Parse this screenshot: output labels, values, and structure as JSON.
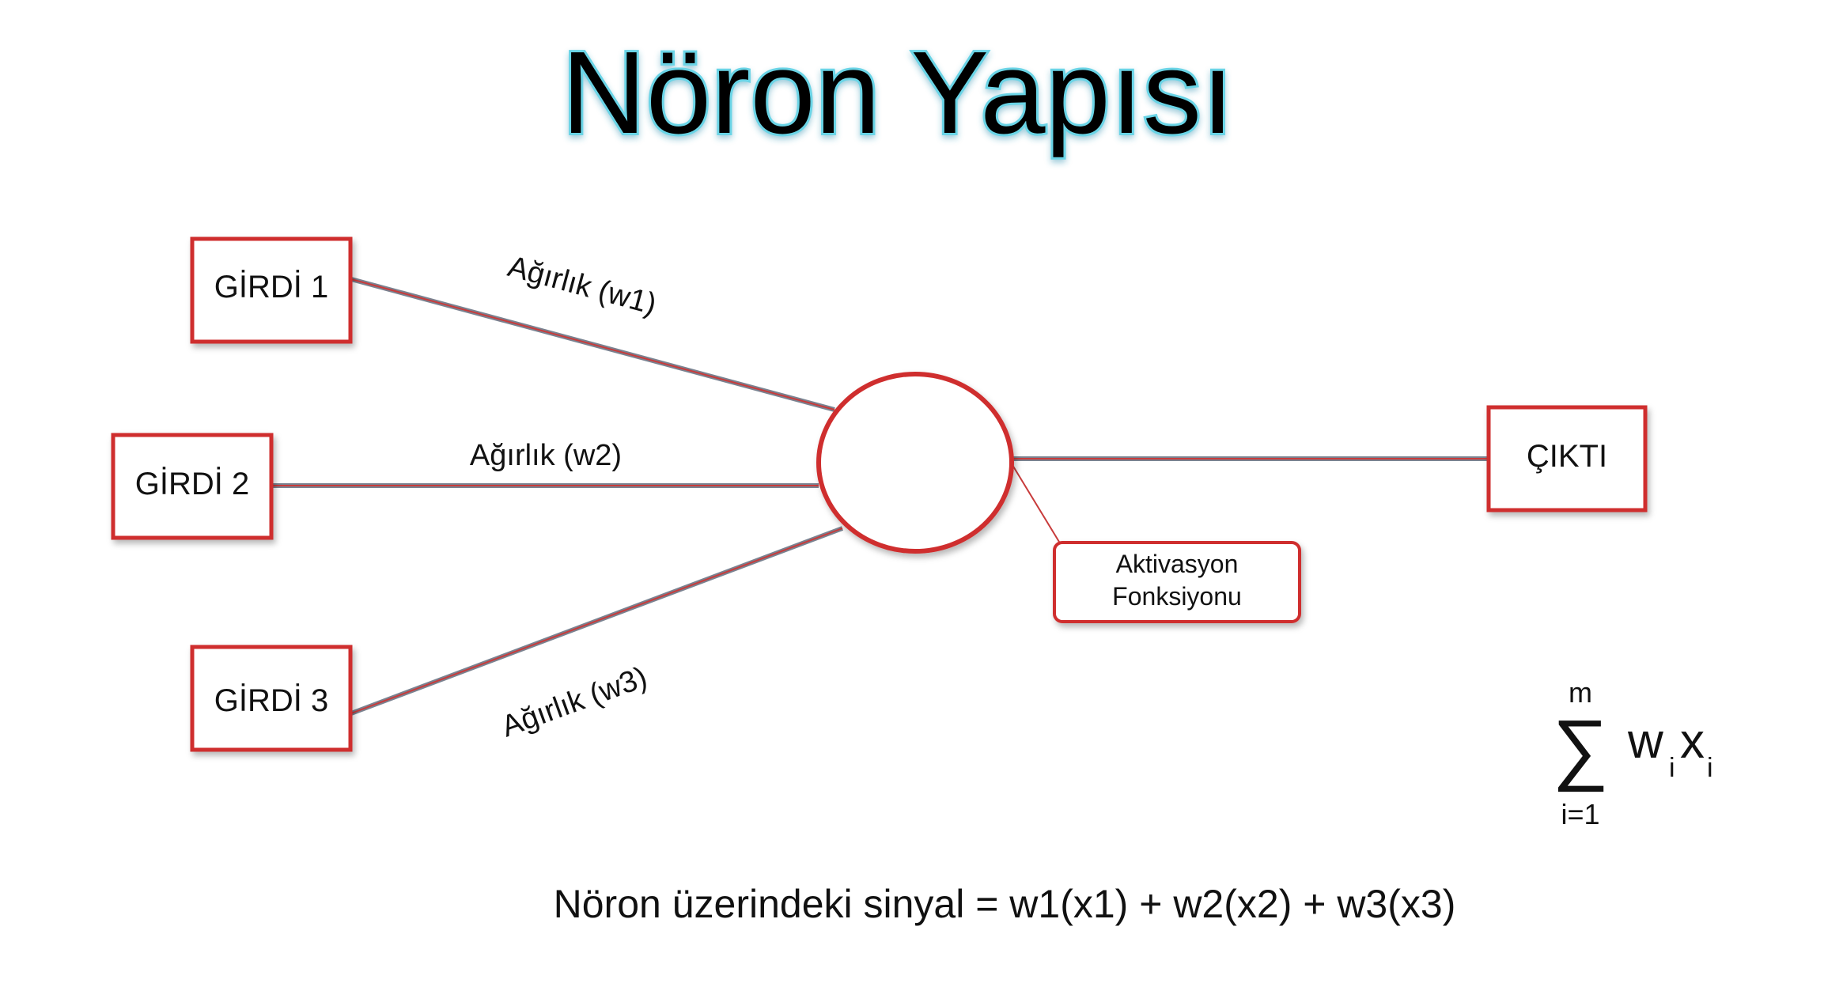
{
  "title": "Nöron Yapısı",
  "inputs": [
    {
      "label": "GİRDİ 1"
    },
    {
      "label": "GİRDİ 2"
    },
    {
      "label": "GİRDİ 3"
    }
  ],
  "weights": [
    {
      "label": "Ağırlık (w1)"
    },
    {
      "label": "Ağırlık (w2)"
    },
    {
      "label": "Ağırlık (w3)"
    }
  ],
  "output": {
    "label": "ÇIKTI"
  },
  "activation": {
    "line1": "Aktivasyon",
    "line2": "Fonksiyonu"
  },
  "sum_formula": {
    "sigma": "∑",
    "upper": "m",
    "lower": "i=1",
    "w": "w",
    "w_sub": "i",
    "x": "x",
    "x_sub": "i"
  },
  "signal_equation": "Nöron üzerindeki sinyal = w1(x1) + w2(x2) + w3(x3)",
  "colors": {
    "box_border": "#cf2f2f",
    "connector": "#7a8290",
    "title_glow": "#6ad4e6"
  }
}
